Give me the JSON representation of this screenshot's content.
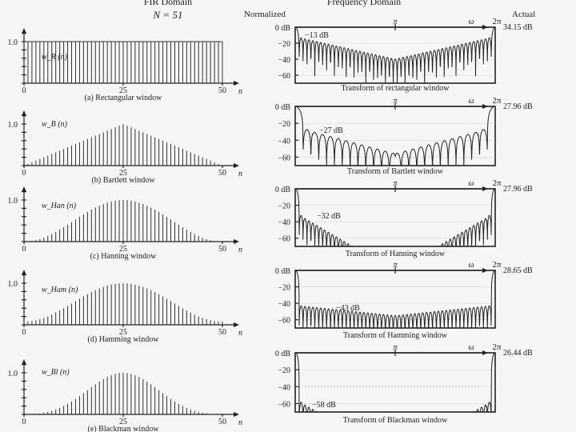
{
  "header": {
    "left_title": "FIR Domain",
    "left_subtitle": "N = 51",
    "right_title": "Frequency Domain",
    "normalized_label": "Normalized",
    "actual_label": "Actual"
  },
  "chart_data": [
    {
      "type": "bar",
      "id": "time-rect",
      "caption": "(a)  Rectangular window",
      "ylabel": "w_R (n)",
      "xlabel": "n",
      "x_ticks": [
        "0",
        "25",
        "50"
      ],
      "y_ticks": [
        "1.0"
      ],
      "xlim": [
        0,
        50
      ],
      "ylim": [
        0,
        1.2
      ],
      "window": "rectangular",
      "N": 51
    },
    {
      "type": "bar",
      "id": "time-bart",
      "caption": "(b)  Bartlett window",
      "ylabel": "w_B (n)",
      "xlabel": "n",
      "x_ticks": [
        "0",
        "25",
        "50"
      ],
      "y_ticks": [
        "1.0"
      ],
      "xlim": [
        0,
        50
      ],
      "ylim": [
        0,
        1.2
      ],
      "window": "bartlett",
      "N": 51
    },
    {
      "type": "bar",
      "id": "time-hann",
      "caption": "(c)  Hanning window",
      "ylabel": "w_Han (n)",
      "xlabel": "n",
      "x_ticks": [
        "0",
        "25",
        "50"
      ],
      "y_ticks": [
        "1.0"
      ],
      "xlim": [
        0,
        50
      ],
      "ylim": [
        0,
        1.2
      ],
      "window": "hanning",
      "N": 51
    },
    {
      "type": "bar",
      "id": "time-hamm",
      "caption": "(d)  Hamming window",
      "ylabel": "w_Ham (n)",
      "xlabel": "n",
      "x_ticks": [
        "0",
        "25",
        "50"
      ],
      "y_ticks": [
        "1.0"
      ],
      "xlim": [
        0,
        50
      ],
      "ylim": [
        0,
        1.2
      ],
      "window": "hamming",
      "N": 51
    },
    {
      "type": "bar",
      "id": "time-black",
      "caption": "(e)  Blackman window",
      "ylabel": "w_Bl (n)",
      "xlabel": "n",
      "x_ticks": [
        "0",
        "25",
        "50"
      ],
      "y_ticks": [
        "1.0"
      ],
      "xlim": [
        0,
        50
      ],
      "ylim": [
        0,
        1.2
      ],
      "window": "blackman",
      "N": 51
    },
    {
      "type": "line",
      "id": "freq-rect",
      "caption": "Transform of rectangular window",
      "sidelobe_label": "−13 dB",
      "actual_db": "34.15 dB",
      "y_ticks": [
        "0 dB",
        "−20",
        "−40",
        "−60"
      ],
      "ylim": [
        -70,
        0
      ],
      "x_ticks": [
        "π",
        "ω",
        "2π"
      ],
      "xlim": [
        0,
        6.2832
      ],
      "sidelobe_db": -13,
      "floor_db": -40,
      "ripple_period": 0.1232
    },
    {
      "type": "line",
      "id": "freq-bart",
      "caption": "Transform of Bartlett window",
      "sidelobe_label": "−27 dB",
      "actual_db": "27.96 dB",
      "y_ticks": [
        "0 dB",
        "−20",
        "−40",
        "−60"
      ],
      "ylim": [
        -70,
        0
      ],
      "x_ticks": [
        "π",
        "ω",
        "2π"
      ],
      "xlim": [
        0,
        6.2832
      ],
      "sidelobe_db": -27,
      "floor_db": -56,
      "ripple_period": 0.2464
    },
    {
      "type": "line",
      "id": "freq-hann",
      "caption": "Transform of Hanning window",
      "sidelobe_label": "−32 dB",
      "actual_db": "27.96 dB",
      "y_ticks": [
        "0 dB",
        "−20",
        "−40",
        "−60"
      ],
      "ylim": [
        -70,
        0
      ],
      "x_ticks": [
        "π",
        "ω",
        "2π"
      ],
      "xlim": [
        0,
        6.2832
      ],
      "sidelobe_db": -32,
      "floor_db": -100,
      "ripple_period": 0.1232
    },
    {
      "type": "line",
      "id": "freq-hamm",
      "caption": "Transform of Hamming window",
      "sidelobe_label": "−43 dB",
      "actual_db": "28.65 dB",
      "y_ticks": [
        "0 dB",
        "−20",
        "−40",
        "−60"
      ],
      "ylim": [
        -70,
        0
      ],
      "x_ticks": [
        "π",
        "ω",
        "2π"
      ],
      "xlim": [
        0,
        6.2832
      ],
      "sidelobe_db": -43,
      "floor_db": -55,
      "ripple_period": 0.1232
    },
    {
      "type": "line",
      "id": "freq-black",
      "caption": "Transform of Blackman window",
      "sidelobe_label": "−58 dB",
      "actual_db": "26.44 dB",
      "y_ticks": [
        "0 dB",
        "−20",
        "−40",
        "−60"
      ],
      "ylim": [
        -70,
        0
      ],
      "x_ticks": [
        "π",
        "ω",
        "2π"
      ],
      "xlim": [
        0,
        6.2832
      ],
      "sidelobe_db": -58,
      "floor_db": -120,
      "ripple_period": 0.1232
    }
  ]
}
